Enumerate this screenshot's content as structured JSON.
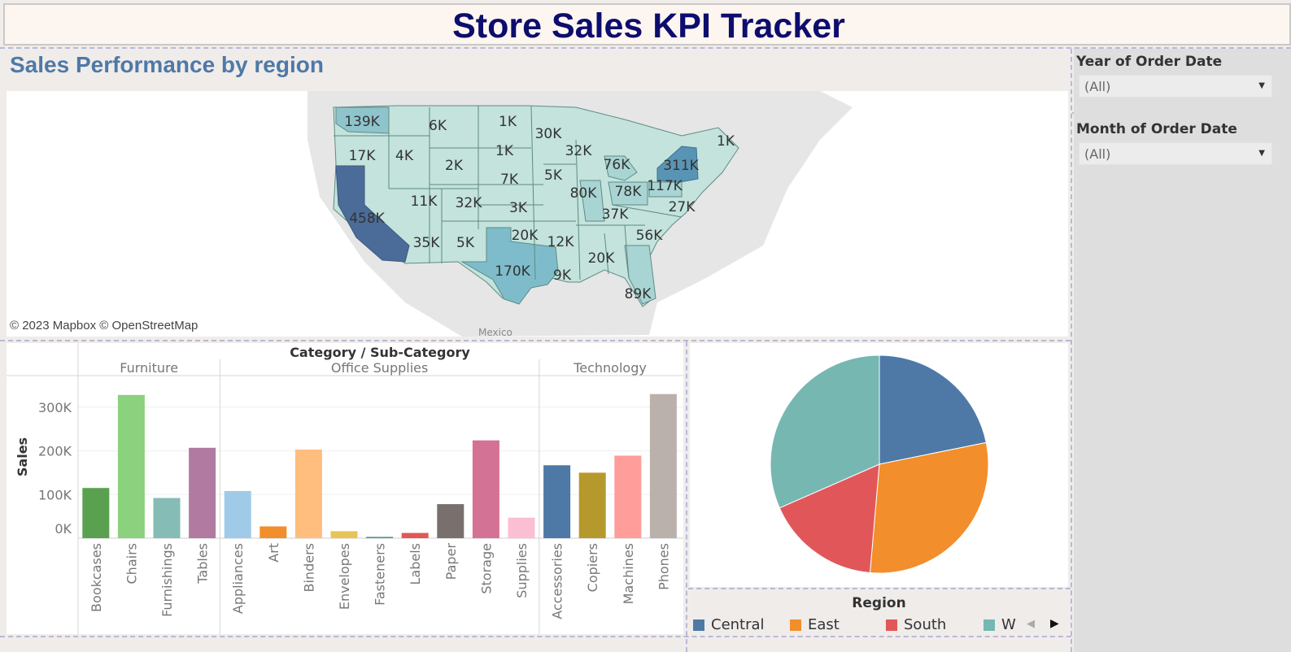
{
  "title": "Store Sales KPI Tracker",
  "section_title": "Sales Performance by region",
  "map": {
    "credit": "© 2023 Mapbox © OpenStreetMap",
    "mexico_label": "Mexico",
    "state_labels": [
      "139K",
      "6K",
      "1K",
      "30K",
      "1K",
      "17K",
      "4K",
      "1K",
      "32K",
      "2K",
      "76K",
      "7K",
      "5K",
      "311K",
      "11K",
      "32K",
      "80K",
      "78K",
      "117K",
      "3K",
      "458K",
      "37K",
      "27K",
      "20K",
      "35K",
      "5K",
      "12K",
      "56K",
      "20K",
      "170K",
      "9K",
      "89K"
    ]
  },
  "sidebar": {
    "filters": [
      {
        "label": "Year of Order Date",
        "value": "(All)"
      },
      {
        "label": "Month of Order Date",
        "value": "(All)"
      }
    ]
  },
  "chart_data": [
    {
      "type": "bar",
      "title": "Category / Sub-Category",
      "ylabel": "Sales",
      "ylim": [
        0,
        350000
      ],
      "yticks": [
        "0K",
        "100K",
        "200K",
        "300K"
      ],
      "groups": [
        {
          "name": "Furniture",
          "categories": [
            "Bookcases",
            "Chairs",
            "Furnishings",
            "Tables"
          ],
          "values": [
            115000,
            328000,
            92000,
            207000
          ],
          "colors": [
            "#59a14f",
            "#8cd17d",
            "#86bcb6",
            "#b07aa1"
          ]
        },
        {
          "name": "Office Supplies",
          "categories": [
            "Appliances",
            "Art",
            "Binders",
            "Envelopes",
            "Fasteners",
            "Labels",
            "Paper",
            "Storage",
            "Supplies"
          ],
          "values": [
            108000,
            27000,
            203000,
            16000,
            3000,
            12000,
            78000,
            224000,
            47000
          ],
          "colors": [
            "#a0cbe8",
            "#f28e2b",
            "#ffbe7d",
            "#e8c456",
            "#499894",
            "#e15759",
            "#79706e",
            "#d37295",
            "#fabfd2"
          ]
        },
        {
          "name": "Technology",
          "categories": [
            "Accessories",
            "Copiers",
            "Machines",
            "Phones"
          ],
          "values": [
            167000,
            150000,
            189000,
            330000
          ],
          "colors": [
            "#4e79a7",
            "#b6992d",
            "#ff9d9a",
            "#bab0ac"
          ]
        }
      ]
    },
    {
      "type": "pie",
      "title": "Region",
      "series": [
        {
          "name": "Central",
          "value": 501240,
          "color": "#4e79a7"
        },
        {
          "name": "East",
          "value": 678781,
          "color": "#f28e2b"
        },
        {
          "name": "South",
          "value": 391722,
          "color": "#e15759"
        },
        {
          "name": "West",
          "value": 725458,
          "color": "#76b7b2"
        }
      ],
      "legend_labels": [
        "Central",
        "East",
        "South",
        "W"
      ]
    }
  ]
}
